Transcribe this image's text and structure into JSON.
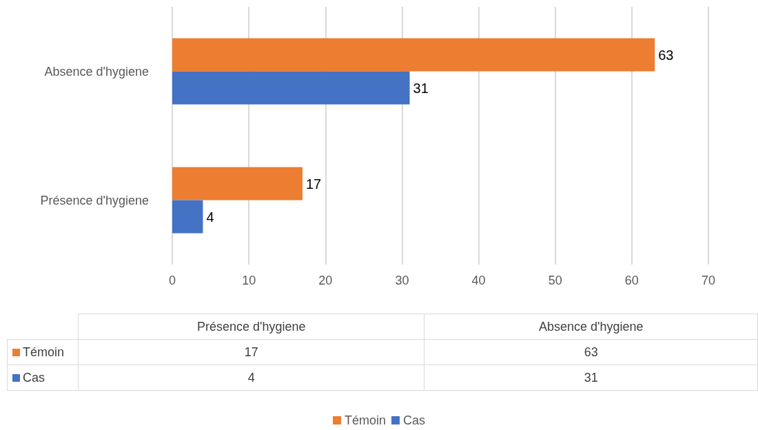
{
  "chart_data": {
    "type": "bar",
    "orientation": "horizontal",
    "categories": [
      "Absence d'hygiene",
      "Présence d'hygiene"
    ],
    "series": [
      {
        "name": "Témoin",
        "color": "#ed7d31",
        "values": [
          63,
          17
        ],
        "value_labels": [
          "63",
          "17"
        ]
      },
      {
        "name": "Cas",
        "color": "#4472c4",
        "values": [
          31,
          4
        ],
        "value_labels": [
          "31",
          "4"
        ]
      }
    ],
    "xlim": [
      0,
      70
    ],
    "xticks": [
      0,
      10,
      20,
      30,
      40,
      50,
      60,
      70
    ],
    "grid": "x",
    "legend": "bottom"
  }
}
